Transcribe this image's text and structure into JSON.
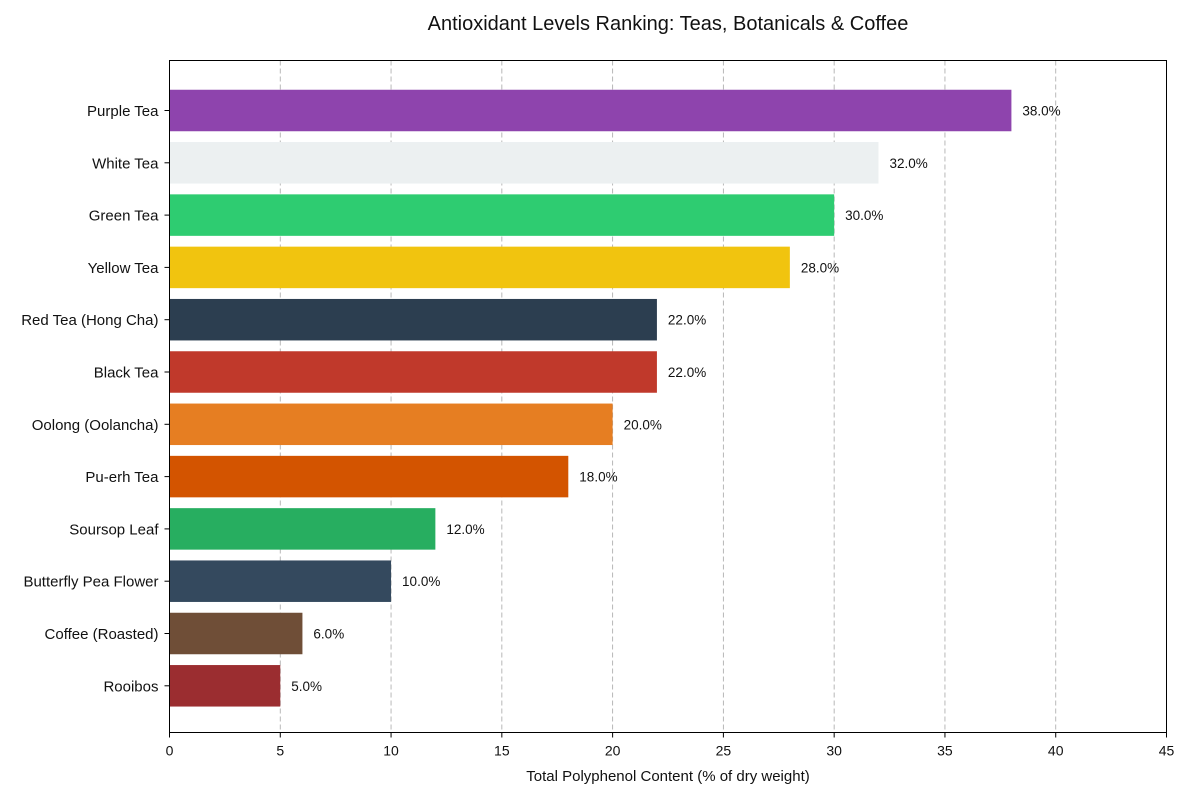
{
  "chart_data": {
    "type": "bar",
    "orientation": "horizontal",
    "title": "Antioxidant Levels Ranking: Teas, Botanicals & Coffee",
    "xlabel": "Total Polyphenol Content (% of dry weight)",
    "ylabel": "",
    "xlim": [
      0,
      45
    ],
    "xticks": [
      0,
      5,
      10,
      15,
      20,
      25,
      30,
      35,
      40,
      45
    ],
    "grid": "vertical-dashed",
    "value_label_format": "percent-1dp",
    "categories": [
      "Purple Tea",
      "White Tea",
      "Green Tea",
      "Yellow Tea",
      "Red Tea (Hong Cha)",
      "Black Tea",
      "Oolong (Oolancha)",
      "Pu-erh Tea",
      "Soursop Leaf",
      "Butterfly Pea Flower",
      "Coffee (Roasted)",
      "Rooibos"
    ],
    "values": [
      38.0,
      32.0,
      30.0,
      28.0,
      22.0,
      22.0,
      20.0,
      18.0,
      12.0,
      10.0,
      6.0,
      5.0
    ],
    "value_labels": [
      "38.0%",
      "32.0%",
      "30.0%",
      "28.0%",
      "22.0%",
      "22.0%",
      "20.0%",
      "18.0%",
      "12.0%",
      "10.0%",
      "6.0%",
      "5.0%"
    ],
    "colors": [
      "#8e44ad",
      "#ecf0f1",
      "#2ecc71",
      "#f1c40f",
      "#2c3e50",
      "#c0392b",
      "#e67e22",
      "#d35400",
      "#27ae60",
      "#34495e",
      "#6f4e37",
      "#9b2d30"
    ]
  }
}
